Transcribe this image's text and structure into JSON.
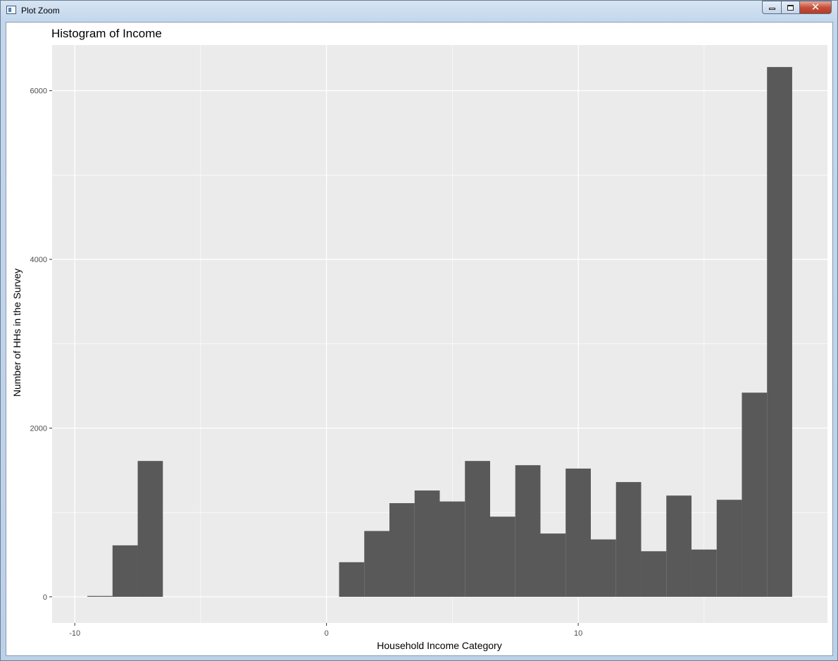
{
  "window": {
    "title": "Plot Zoom",
    "close_glyph": "✕"
  },
  "chart_data": {
    "type": "bar",
    "title": "Histogram of Income",
    "xlabel": "Household Income Category",
    "ylabel": "Number of HHs in the Survey",
    "xlim": [
      -10.9,
      19.9
    ],
    "ylim": [
      -310,
      6540
    ],
    "x_ticks": [
      -10,
      0,
      10
    ],
    "y_ticks": [
      0,
      2000,
      4000,
      6000
    ],
    "bin_width": 1,
    "bins": [
      {
        "x": -9,
        "value": 10
      },
      {
        "x": -8,
        "value": 610
      },
      {
        "x": -7,
        "value": 1610
      },
      {
        "x": 1,
        "value": 410
      },
      {
        "x": 2,
        "value": 780
      },
      {
        "x": 3,
        "value": 1110
      },
      {
        "x": 4,
        "value": 1260
      },
      {
        "x": 5,
        "value": 1130
      },
      {
        "x": 6,
        "value": 1610
      },
      {
        "x": 7,
        "value": 950
      },
      {
        "x": 8,
        "value": 1560
      },
      {
        "x": 9,
        "value": 750
      },
      {
        "x": 10,
        "value": 1520
      },
      {
        "x": 11,
        "value": 680
      },
      {
        "x": 12,
        "value": 1360
      },
      {
        "x": 13,
        "value": 540
      },
      {
        "x": 14,
        "value": 1200
      },
      {
        "x": 15,
        "value": 560
      },
      {
        "x": 16,
        "value": 1150
      },
      {
        "x": 17,
        "value": 2420
      },
      {
        "x": 18,
        "value": 6280
      }
    ],
    "bar_color": "#595959",
    "panel_color": "#EBEBEB",
    "grid": true,
    "legend": "none"
  }
}
